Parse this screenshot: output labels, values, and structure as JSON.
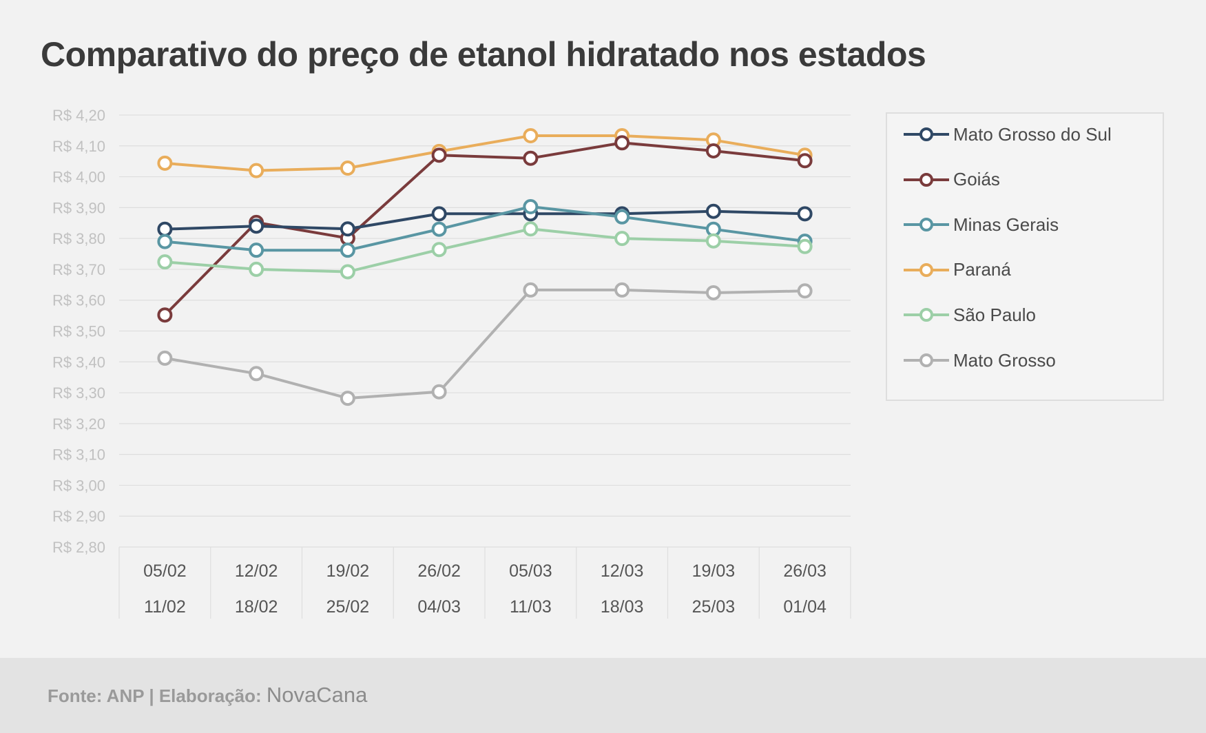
{
  "title": "Comparativo do preço de etanol hidratado nos estados",
  "footer": {
    "source": "Fonte: ANP | Elaboração: ",
    "brand": "NovaCana"
  },
  "chart_data": {
    "type": "line",
    "title": "Comparativo do preço de etanol hidratado nos estados",
    "xlabel": "",
    "ylabel": "",
    "ylim": [
      2.8,
      4.2
    ],
    "y_ticks": [
      "R$ 2,80",
      "R$ 2,90",
      "R$ 3,00",
      "R$ 3,10",
      "R$ 3,20",
      "R$ 3,30",
      "R$ 3,40",
      "R$ 3,50",
      "R$ 3,60",
      "R$ 3,70",
      "R$ 3,80",
      "R$ 3,90",
      "R$ 4,00",
      "R$ 4,10",
      "R$ 4,20"
    ],
    "categories": [
      {
        "start": "05/02",
        "end": "11/02"
      },
      {
        "start": "12/02",
        "end": "18/02"
      },
      {
        "start": "19/02",
        "end": "25/02"
      },
      {
        "start": "26/02",
        "end": "04/03"
      },
      {
        "start": "05/03",
        "end": "11/03"
      },
      {
        "start": "12/03",
        "end": "18/03"
      },
      {
        "start": "19/03",
        "end": "25/03"
      },
      {
        "start": "26/03",
        "end": "01/04"
      }
    ],
    "grid": true,
    "legend_position": "right",
    "series": [
      {
        "name": "Paraná",
        "color": "#e9ad5b",
        "values": [
          4.044,
          4.02,
          4.028,
          4.082,
          4.133,
          4.133,
          4.119,
          4.07
        ]
      },
      {
        "name": "Goiás",
        "color": "#7a3b3c",
        "values": [
          3.552,
          3.852,
          3.801,
          4.07,
          4.06,
          4.11,
          4.084,
          4.052
        ]
      },
      {
        "name": "Mato Grosso do Sul",
        "color": "#2f4865",
        "values": [
          3.83,
          3.84,
          3.831,
          3.88,
          3.88,
          3.88,
          3.888,
          3.88
        ]
      },
      {
        "name": "Minas Gerais",
        "color": "#5996a3",
        "values": [
          3.79,
          3.762,
          3.762,
          3.83,
          3.903,
          3.87,
          3.83,
          3.791
        ]
      },
      {
        "name": "São Paulo",
        "color": "#9ccfa7",
        "values": [
          3.724,
          3.7,
          3.692,
          3.764,
          3.831,
          3.8,
          3.792,
          3.774
        ]
      },
      {
        "name": "Mato Grosso",
        "color": "#b1b1b1",
        "values": [
          3.412,
          3.362,
          3.282,
          3.303,
          3.633,
          3.633,
          3.624,
          3.63
        ]
      }
    ],
    "legend_order": [
      "Mato Grosso do Sul",
      "Goiás",
      "Minas Gerais",
      "Paraná",
      "São Paulo",
      "Mato Grosso"
    ]
  }
}
